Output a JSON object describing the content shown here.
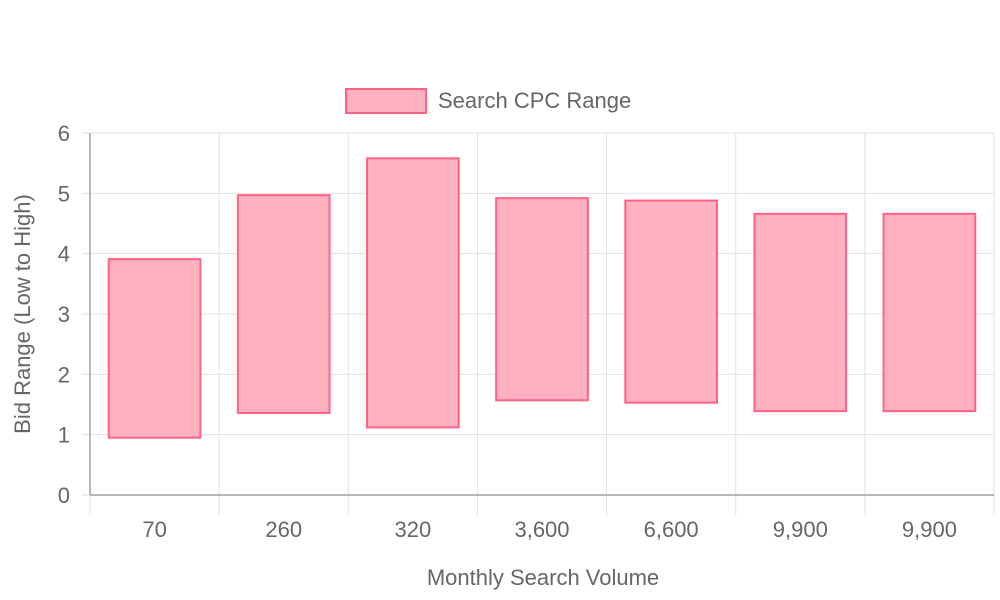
{
  "chart_data": {
    "type": "bar",
    "subtype": "floating-range",
    "categories": [
      "70",
      "260",
      "320",
      "3,600",
      "6,600",
      "9,900",
      "9,900"
    ],
    "series": [
      {
        "name": "Search CPC Range",
        "ranges": [
          [
            0.95,
            3.91
          ],
          [
            1.36,
            4.97
          ],
          [
            1.12,
            5.58
          ],
          [
            1.57,
            4.92
          ],
          [
            1.53,
            4.88
          ],
          [
            1.39,
            4.66
          ],
          [
            1.39,
            4.66
          ]
        ]
      }
    ],
    "xlabel": "Monthly Search Volume",
    "ylabel": "Bid Range (Low to High)",
    "ylim": [
      0,
      6
    ],
    "yticks": [
      0,
      1,
      2,
      3,
      4,
      5,
      6
    ],
    "grid": true,
    "legend_position": "top-center",
    "colors": {
      "bar_fill": "#ffb0c1",
      "bar_stroke": "#ff6384",
      "grid": "#e1e1e1",
      "text": "#666666"
    }
  }
}
